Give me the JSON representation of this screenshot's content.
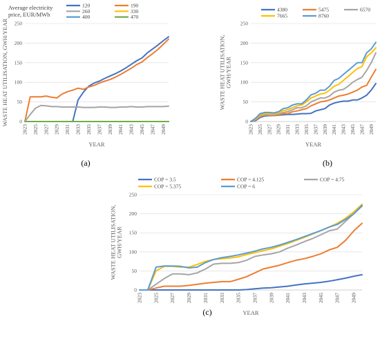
{
  "palette": [
    "#4472C4",
    "#ED7D31",
    "#A5A5A5",
    "#FFC000",
    "#5B9BD5",
    "#70AD47"
  ],
  "chart_data": [
    {
      "id": "a",
      "type": "line",
      "caption": "(a)",
      "xlabel": "YEAR",
      "ylabel": "WASTE HEAT UTILISATION, GWH/YEAR",
      "legend_title": "Average electricity price, EUR/MWh",
      "legend_placement": "top-left",
      "x": [
        2023,
        2024,
        2025,
        2026,
        2027,
        2028,
        2029,
        2030,
        2031,
        2032,
        2033,
        2034,
        2035,
        2036,
        2037,
        2038,
        2039,
        2040,
        2041,
        2042,
        2043,
        2044,
        2045,
        2046,
        2047,
        2048,
        2049,
        2050
      ],
      "xticks": [
        "2023",
        "2025",
        "2027",
        "2029",
        "2031",
        "2033",
        "2035",
        "2037",
        "2039",
        "2041",
        "2043",
        "2045",
        "2047",
        "2049"
      ],
      "ylim": [
        0,
        250
      ],
      "yticks": [
        0,
        50,
        100,
        150,
        200,
        250
      ],
      "grid": "horizontal",
      "series": [
        {
          "name": "120",
          "values": [
            0,
            0,
            0,
            0,
            0,
            0,
            0,
            0,
            0,
            0,
            55,
            75,
            90,
            98,
            103,
            110,
            116,
            122,
            129,
            137,
            146,
            155,
            162,
            175,
            185,
            195,
            206,
            216
          ]
        },
        {
          "name": "190",
          "values": [
            0,
            63,
            63,
            63,
            65,
            62,
            60,
            70,
            76,
            80,
            85,
            82,
            88,
            92,
            98,
            103,
            107,
            113,
            120,
            128,
            136,
            145,
            152,
            163,
            173,
            184,
            197,
            210
          ]
        },
        {
          "name": "260",
          "values": [
            0,
            18,
            34,
            41,
            40,
            38,
            38,
            37,
            37,
            37,
            37,
            36,
            36,
            36,
            37,
            37,
            36,
            36,
            37,
            37,
            38,
            37,
            37,
            38,
            38,
            38,
            38,
            39
          ]
        },
        {
          "name": "330",
          "values": [
            0,
            0,
            0,
            0,
            0,
            0,
            0,
            0,
            0,
            0,
            0,
            0,
            0,
            0,
            0,
            0,
            0,
            0,
            0,
            0,
            0,
            0,
            0,
            0,
            0,
            0,
            0,
            0
          ]
        },
        {
          "name": "400",
          "values": [
            0,
            0,
            0,
            0,
            0,
            0,
            0,
            0,
            0,
            0,
            0,
            0,
            0,
            0,
            0,
            0,
            0,
            0,
            0,
            0,
            0,
            0,
            0,
            0,
            0,
            0,
            0,
            0
          ]
        },
        {
          "name": "470",
          "values": [
            0,
            0,
            0,
            0,
            0,
            0,
            0,
            0,
            0,
            0,
            0,
            0,
            0,
            0,
            0,
            0,
            0,
            0,
            0,
            0,
            0,
            0,
            0,
            0,
            0,
            0,
            0,
            0
          ]
        }
      ]
    },
    {
      "id": "b",
      "type": "line",
      "caption": "(b)",
      "xlabel": "YEAR",
      "ylabel": "WASTE HEAT UTILISATION, GWH/YEAR",
      "legend_placement": "top",
      "x": [
        2023,
        2024,
        2025,
        2026,
        2027,
        2028,
        2029,
        2030,
        2031,
        2032,
        2033,
        2034,
        2035,
        2036,
        2037,
        2038,
        2039,
        2040,
        2041,
        2042,
        2043,
        2044,
        2045,
        2046,
        2047,
        2048,
        2049,
        2050
      ],
      "xticks": [
        "2023",
        "2025",
        "2027",
        "2029",
        "2031",
        "2033",
        "2035",
        "2037",
        "2039",
        "2041",
        "2043",
        "2045",
        "2047",
        "2049"
      ],
      "ylim": [
        0,
        250
      ],
      "yticks": [
        0,
        50,
        100,
        150,
        200,
        250
      ],
      "grid": "horizontal",
      "series": [
        {
          "name": "4380",
          "values": [
            0,
            2,
            10,
            14,
            15,
            15,
            16,
            17,
            18,
            18,
            19,
            20,
            20,
            21,
            27,
            30,
            33,
            42,
            47,
            50,
            52,
            52,
            55,
            55,
            60,
            67,
            80,
            97
          ]
        },
        {
          "name": "5475",
          "values": [
            0,
            4,
            12,
            16,
            16,
            15,
            17,
            20,
            20,
            25,
            27,
            30,
            33,
            40,
            45,
            50,
            52,
            55,
            60,
            65,
            67,
            70,
            75,
            80,
            88,
            92,
            113,
            133
          ]
        },
        {
          "name": "6570",
          "values": [
            0,
            5,
            14,
            17,
            17,
            17,
            19,
            23,
            25,
            30,
            35,
            35,
            40,
            50,
            55,
            60,
            60,
            65,
            75,
            80,
            82,
            90,
            100,
            107,
            113,
            130,
            150,
            175
          ]
        },
        {
          "name": "7665",
          "values": [
            0,
            6,
            17,
            20,
            20,
            20,
            22,
            28,
            30,
            35,
            40,
            42,
            50,
            60,
            65,
            70,
            72,
            80,
            90,
            95,
            105,
            115,
            125,
            135,
            140,
            165,
            175,
            188
          ]
        },
        {
          "name": "8760",
          "values": [
            0,
            8,
            20,
            23,
            23,
            22,
            25,
            33,
            35,
            42,
            45,
            45,
            55,
            68,
            72,
            80,
            80,
            90,
            105,
            110,
            120,
            130,
            140,
            150,
            150,
            175,
            185,
            202
          ]
        }
      ]
    },
    {
      "id": "c",
      "type": "line",
      "caption": "(c)",
      "xlabel": "YEAR",
      "ylabel": "WASTE HEAT UTILISATION, GWH/YEAR",
      "legend_placement": "top",
      "x": [
        2023,
        2024,
        2025,
        2026,
        2027,
        2028,
        2029,
        2030,
        2031,
        2032,
        2033,
        2034,
        2035,
        2036,
        2037,
        2038,
        2039,
        2040,
        2041,
        2042,
        2043,
        2044,
        2045,
        2046,
        2047,
        2048,
        2049,
        2050
      ],
      "xticks": [
        "2023",
        "2025",
        "2027",
        "2029",
        "2031",
        "2033",
        "2035",
        "2037",
        "2039",
        "2041",
        "2043",
        "2045",
        "2047",
        "2049"
      ],
      "ylim": [
        0,
        250
      ],
      "yticks": [
        0,
        50,
        100,
        150,
        200,
        250
      ],
      "grid": "horizontal",
      "series": [
        {
          "name": "COP = 3.5",
          "values": [
            0,
            0,
            0,
            0,
            0,
            0,
            0,
            0,
            0,
            0,
            0,
            0,
            0,
            1,
            3,
            5,
            6,
            8,
            10,
            13,
            16,
            18,
            20,
            23,
            27,
            31,
            36,
            40
          ]
        },
        {
          "name": "COP = 4.125",
          "values": [
            0,
            0,
            5,
            10,
            10,
            10,
            12,
            15,
            18,
            20,
            22,
            22,
            28,
            35,
            45,
            55,
            60,
            65,
            72,
            78,
            82,
            88,
            95,
            105,
            112,
            130,
            155,
            175
          ]
        },
        {
          "name": "COP = 4.75",
          "values": [
            0,
            0,
            15,
            30,
            42,
            42,
            40,
            45,
            55,
            68,
            70,
            70,
            72,
            78,
            88,
            92,
            95,
            100,
            110,
            118,
            127,
            135,
            145,
            155,
            160,
            180,
            200,
            220
          ]
        },
        {
          "name": "COP = 5.375",
          "values": [
            0,
            0,
            50,
            62,
            62,
            60,
            60,
            67,
            75,
            80,
            82,
            84,
            87,
            93,
            98,
            103,
            108,
            115,
            122,
            130,
            138,
            147,
            156,
            165,
            175,
            188,
            205,
            225
          ]
        },
        {
          "name": "COP = 6",
          "values": [
            0,
            0,
            60,
            63,
            63,
            62,
            58,
            60,
            72,
            80,
            85,
            88,
            92,
            97,
            102,
            108,
            112,
            118,
            125,
            132,
            140,
            148,
            156,
            165,
            172,
            185,
            200,
            222
          ]
        }
      ]
    }
  ]
}
